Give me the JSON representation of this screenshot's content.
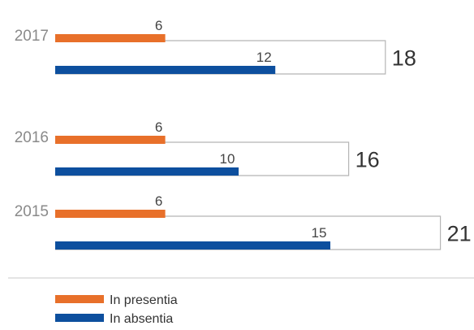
{
  "chart_data": {
    "type": "bar",
    "orientation": "horizontal",
    "categories": [
      "2017",
      "2016",
      "2015"
    ],
    "series": [
      {
        "name": "In presentia",
        "values": [
          6,
          6,
          6
        ],
        "color": "#e8702a"
      },
      {
        "name": "In absentia",
        "values": [
          12,
          10,
          15
        ],
        "color": "#0d4f9e"
      }
    ],
    "totals": [
      18,
      16,
      21
    ],
    "legend_position": "bottom-left",
    "grid": false
  }
}
